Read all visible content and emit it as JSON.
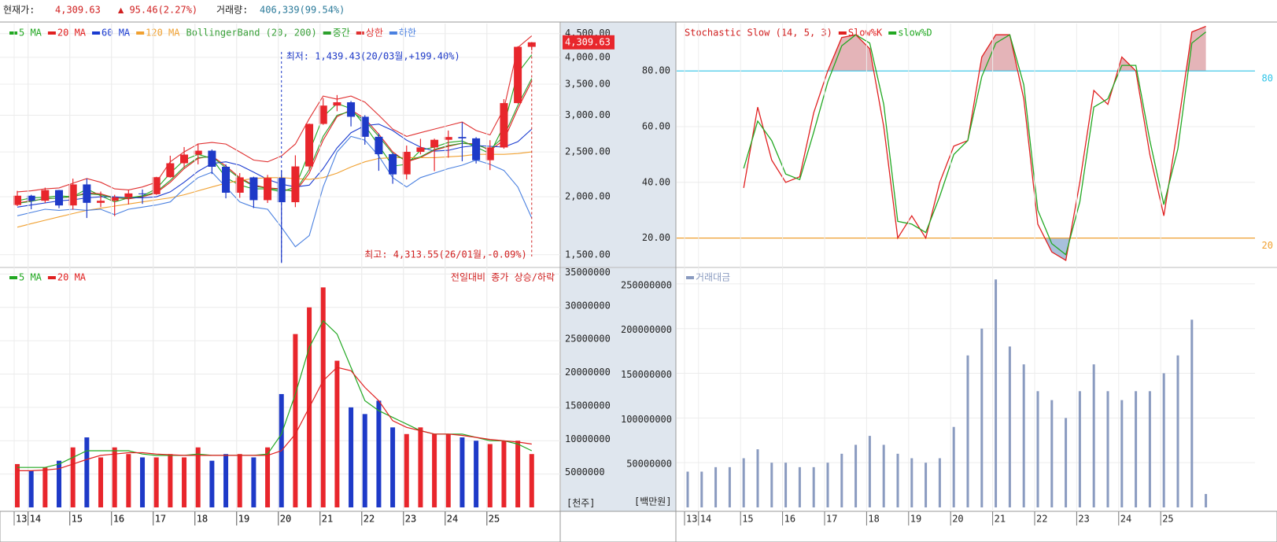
{
  "header": {
    "price_label": "현재가:",
    "price": "4,309.63",
    "change": "▲ 95.46(2.27%)",
    "volume_label": "거래량:",
    "volume": "406,339(99.54%)"
  },
  "chart_data": [
    {
      "type": "candlestick",
      "indicator_label": "BollingerBand (20, 200)",
      "log_scale": true,
      "grid": true,
      "up_color": "#e8262c",
      "down_color": "#1e3ac8",
      "categories": [
        "13",
        "14",
        null,
        null,
        "15",
        null,
        null,
        "16",
        null,
        null,
        "17",
        null,
        null,
        "18",
        null,
        null,
        "19",
        null,
        null,
        "20",
        null,
        null,
        "21",
        null,
        null,
        "22",
        null,
        null,
        "23",
        null,
        null,
        "24",
        null,
        null,
        "25",
        null,
        null,
        null
      ],
      "open": [
        1920,
        2011,
        1961,
        2068,
        1916,
        2127,
        1941,
        1961,
        1994,
        2034,
        2026,
        2205,
        2363,
        2467,
        2515,
        2322,
        2041,
        2203,
        1967,
        2197,
        1947,
        2326,
        2873,
        3147,
        3199,
        2977,
        2695,
        2472,
        2236,
        2501,
        2556,
        2655,
        2692,
        2674,
        2399,
        2556,
        3186,
        4214
      ],
      "high": [
        2060,
        2020,
        2093,
        2070,
        2189,
        2190,
        2053,
        2020,
        2073,
        2074,
        2209,
        2453,
        2561,
        2607,
        2530,
        2350,
        2250,
        2210,
        2230,
        2277,
        2458,
        2878,
        3266,
        3316,
        3220,
        3000,
        2740,
        2490,
        2580,
        2668,
        2670,
        2780,
        2896,
        2690,
        2650,
        3250,
        4226,
        4313.55
      ],
      "low": [
        1910,
        1880,
        1940,
        1890,
        1876,
        1800,
        1900,
        1817,
        1925,
        1931,
        2020,
        2200,
        2310,
        2350,
        2240,
        1985,
        1990,
        1891,
        1940,
        1439.43,
        1900,
        2280,
        2860,
        3060,
        2837,
        2591,
        2276,
        2134,
        2180,
        2470,
        2273,
        2429,
        2386,
        2360,
        2284,
        2540,
        3180,
        4140
      ],
      "close": [
        2011,
        1961,
        2068,
        1916,
        2127,
        1941,
        1961,
        1994,
        2034,
        2026,
        2205,
        2363,
        2467,
        2515,
        2322,
        2041,
        2203,
        1967,
        2197,
        1947,
        2326,
        2873,
        3147,
        3199,
        2977,
        2695,
        2472,
        2236,
        2501,
        2556,
        2655,
        2692,
        2674,
        2399,
        2556,
        3186,
        4214,
        4309.63
      ],
      "series": [
        {
          "name": "5 MA",
          "color": "#22a822",
          "values": [
            1960,
            1990,
            1995,
            2010,
            2000,
            2080,
            2010,
            1950,
            1990,
            2010,
            2080,
            2250,
            2400,
            2470,
            2420,
            2200,
            2120,
            2080,
            2080,
            2050,
            2100,
            2500,
            2980,
            3180,
            3100,
            2850,
            2580,
            2330,
            2350,
            2520,
            2560,
            2620,
            2640,
            2560,
            2480,
            2850,
            3700,
            4050
          ]
        },
        {
          "name": "20 MA",
          "color": "#e02020",
          "values": [
            1940,
            1960,
            1980,
            1990,
            2000,
            2040,
            2030,
            1990,
            1980,
            2000,
            2040,
            2150,
            2300,
            2420,
            2450,
            2330,
            2200,
            2120,
            2090,
            2080,
            2050,
            2250,
            2650,
            2980,
            3080,
            2950,
            2730,
            2500,
            2380,
            2430,
            2520,
            2570,
            2610,
            2600,
            2520,
            2650,
            3100,
            3550
          ]
        },
        {
          "name": "60 MA",
          "color": "#1a3bd0",
          "values": [
            1900,
            1920,
            1940,
            1960,
            1970,
            1990,
            2000,
            2000,
            1990,
            1990,
            2000,
            2050,
            2150,
            2270,
            2360,
            2380,
            2340,
            2260,
            2180,
            2130,
            2100,
            2120,
            2300,
            2550,
            2750,
            2850,
            2870,
            2780,
            2650,
            2560,
            2510,
            2520,
            2560,
            2580,
            2570,
            2560,
            2630,
            2800
          ]
        },
        {
          "name": "120 MA",
          "color": "#f0a030",
          "values": [
            1720,
            1750,
            1780,
            1810,
            1840,
            1870,
            1890,
            1910,
            1930,
            1950,
            1970,
            1990,
            2020,
            2060,
            2100,
            2140,
            2170,
            2190,
            2200,
            2200,
            2190,
            2180,
            2200,
            2250,
            2320,
            2380,
            2420,
            2430,
            2430,
            2430,
            2430,
            2440,
            2450,
            2470,
            2470,
            2470,
            2480,
            2500
          ]
        },
        {
          "name": "중간",
          "color": "#2ca02c",
          "band": true,
          "values": [
            1935,
            1955,
            1985,
            1985,
            2005,
            2030,
            2020,
            1985,
            1990,
            2005,
            2050,
            2170,
            2320,
            2430,
            2440,
            2310,
            2190,
            2110,
            2085,
            2070,
            2060,
            2290,
            2700,
            3000,
            3060,
            2920,
            2700,
            2480,
            2390,
            2440,
            2530,
            2580,
            2610,
            2590,
            2530,
            2700,
            3150,
            3600
          ]
        },
        {
          "name": "상한",
          "color": "#e03030",
          "band": true,
          "values": [
            2050,
            2060,
            2080,
            2090,
            2140,
            2190,
            2150,
            2080,
            2070,
            2100,
            2150,
            2380,
            2500,
            2600,
            2620,
            2600,
            2500,
            2400,
            2380,
            2450,
            2600,
            2950,
            3300,
            3250,
            3300,
            3200,
            3000,
            2800,
            2700,
            2750,
            2800,
            2850,
            2900,
            2780,
            2720,
            3100,
            4200,
            4450
          ]
        },
        {
          "name": "하한",
          "color": "#4a80e0",
          "band": true,
          "values": [
            1820,
            1850,
            1880,
            1870,
            1880,
            1870,
            1880,
            1830,
            1880,
            1900,
            1920,
            1950,
            2080,
            2200,
            2260,
            2100,
            1950,
            1900,
            1880,
            1720,
            1560,
            1650,
            2100,
            2500,
            2700,
            2650,
            2450,
            2200,
            2100,
            2200,
            2250,
            2300,
            2340,
            2400,
            2350,
            2280,
            2100,
            1800
          ]
        }
      ],
      "ylim": [
        1430,
        4620
      ],
      "yticks": [
        {
          "value": 1500,
          "label": "1,500.00"
        },
        {
          "value": 2000,
          "label": "2,000.00"
        },
        {
          "value": 2500,
          "label": "2,500.00"
        },
        {
          "value": 3000,
          "label": "3,000.00"
        },
        {
          "value": 3500,
          "label": "3,500.00"
        },
        {
          "value": 4000,
          "label": "4,000.00"
        },
        {
          "value": 4500,
          "label": "4,500.00"
        }
      ],
      "last_price": {
        "value": 4309.63,
        "label": "4,309.63"
      },
      "annotations": [
        {
          "kind": "low",
          "value": 1439.43,
          "text": "최저: 1,439.43(20/03월,+199.40%)",
          "color": "#1e3ac8"
        },
        {
          "kind": "high",
          "value": 4313.55,
          "text": "최고: 4,313.55(26/01월,-0.09%)",
          "color": "#d02020"
        }
      ]
    },
    {
      "type": "bar",
      "note": "전일대비 종가 상승/하락",
      "unit": "[천주]",
      "grid": true,
      "categories": [
        "13",
        "14",
        null,
        null,
        "15",
        null,
        null,
        "16",
        null,
        null,
        "17",
        null,
        null,
        "18",
        null,
        null,
        "19",
        null,
        null,
        "20",
        null,
        null,
        "21",
        null,
        null,
        "22",
        null,
        null,
        "23",
        null,
        null,
        "24",
        null,
        null,
        "25",
        null,
        null,
        null
      ],
      "values": [
        6500000,
        5500000,
        6000000,
        7000000,
        9000000,
        10500000,
        7500000,
        9000000,
        8000000,
        7500000,
        7500000,
        8000000,
        7500000,
        9000000,
        7000000,
        8000000,
        8000000,
        7500000,
        9000000,
        17000000,
        26000000,
        30000000,
        33000000,
        22000000,
        15000000,
        14000000,
        16000000,
        12000000,
        11000000,
        12000000,
        11000000,
        11000000,
        10500000,
        10000000,
        9500000,
        10000000,
        10000000,
        8000000
      ],
      "series": [
        {
          "name": "5 MA",
          "color": "#22a822",
          "values": [
            6000000,
            6000000,
            6000000,
            6500000,
            7500000,
            8500000,
            8500000,
            8500000,
            8500000,
            8000000,
            7800000,
            7800000,
            7800000,
            8000000,
            7800000,
            7800000,
            7800000,
            7800000,
            8000000,
            11000000,
            17000000,
            24000000,
            28000000,
            26000000,
            21000000,
            16000000,
            14500000,
            13500000,
            12500000,
            11500000,
            11000000,
            11000000,
            11000000,
            10500000,
            10000000,
            10000000,
            9500000,
            8500000
          ]
        },
        {
          "name": "20 MA",
          "color": "#e02020",
          "values": [
            5500000,
            5500000,
            5600000,
            5800000,
            6500000,
            7200000,
            7800000,
            8000000,
            8200000,
            8200000,
            8000000,
            7900000,
            7800000,
            7800000,
            7800000,
            7800000,
            7800000,
            7800000,
            7800000,
            8500000,
            11000000,
            15000000,
            19000000,
            21000000,
            20500000,
            18000000,
            16000000,
            13000000,
            12000000,
            11500000,
            11000000,
            11000000,
            10800000,
            10500000,
            10200000,
            10000000,
            9800000,
            9500000
          ]
        }
      ],
      "ylim": [
        0,
        35400000
      ],
      "yticks": [
        5000000,
        10000000,
        15000000,
        20000000,
        25000000,
        30000000,
        35000000
      ]
    },
    {
      "type": "line",
      "title": "Stochastic Slow (14, 5, 3)",
      "grid": true,
      "categories": [
        "13",
        "14",
        null,
        null,
        "15",
        null,
        null,
        "16",
        null,
        null,
        "17",
        null,
        null,
        "18",
        null,
        null,
        "19",
        null,
        null,
        "20",
        null,
        null,
        "21",
        null,
        null,
        "22",
        null,
        null,
        "23",
        null,
        null,
        "24",
        null,
        null,
        "25",
        null,
        null,
        null
      ],
      "series": [
        {
          "name": "Slow%K",
          "color": "#e02020",
          "values": [
            null,
            null,
            null,
            null,
            38,
            67,
            48,
            40,
            42,
            65,
            80,
            92,
            93,
            88,
            60,
            20,
            28,
            20,
            40,
            53,
            55,
            85,
            93,
            93,
            70,
            25,
            15,
            12,
            40,
            73,
            68,
            85,
            80,
            50,
            28,
            60,
            94,
            96
          ]
        },
        {
          "name": "slow%D",
          "color": "#22a822",
          "values": [
            null,
            null,
            null,
            null,
            45,
            62,
            55,
            43,
            41,
            58,
            76,
            89,
            93,
            90,
            68,
            26,
            25,
            22,
            35,
            50,
            55,
            78,
            90,
            93,
            75,
            30,
            18,
            14,
            33,
            67,
            70,
            82,
            82,
            55,
            32,
            52,
            90,
            94
          ]
        }
      ],
      "ylim": [
        10,
        97
      ],
      "yticks": [
        {
          "value": 20,
          "label": "20.00"
        },
        {
          "value": 40,
          "label": "40.00"
        },
        {
          "value": 60,
          "label": "60.00"
        },
        {
          "value": 80,
          "label": "80.00"
        }
      ],
      "reference_lines": [
        {
          "value": 80,
          "label": "80",
          "color": "#2fc4e8",
          "fill": "#e4b4b8"
        },
        {
          "value": 20,
          "label": "20",
          "color": "#f0a030",
          "fill": "#a8c0dc"
        }
      ]
    },
    {
      "type": "bar",
      "unit": "[백만원]",
      "grid": true,
      "categories": [
        "13",
        "14",
        null,
        null,
        "15",
        null,
        null,
        "16",
        null,
        null,
        "17",
        null,
        null,
        "18",
        null,
        null,
        "19",
        null,
        null,
        "20",
        null,
        null,
        "21",
        null,
        null,
        "22",
        null,
        null,
        "23",
        null,
        null,
        "24",
        null,
        null,
        "25",
        null,
        null,
        null
      ],
      "series": [
        {
          "name": "거래대금",
          "color": "#8a9bc0",
          "values": [
            40000000,
            40000000,
            45000000,
            45000000,
            55000000,
            65000000,
            50000000,
            50000000,
            45000000,
            45000000,
            50000000,
            60000000,
            70000000,
            80000000,
            70000000,
            60000000,
            55000000,
            50000000,
            55000000,
            90000000,
            170000000,
            200000000,
            255000000,
            180000000,
            160000000,
            130000000,
            120000000,
            100000000,
            130000000,
            160000000,
            130000000,
            120000000,
            130000000,
            130000000,
            150000000,
            170000000,
            210000000,
            15000000
          ]
        }
      ],
      "ylim": [
        0,
        264000000
      ],
      "yticks": [
        50000000,
        100000000,
        150000000,
        200000000,
        250000000
      ]
    }
  ]
}
